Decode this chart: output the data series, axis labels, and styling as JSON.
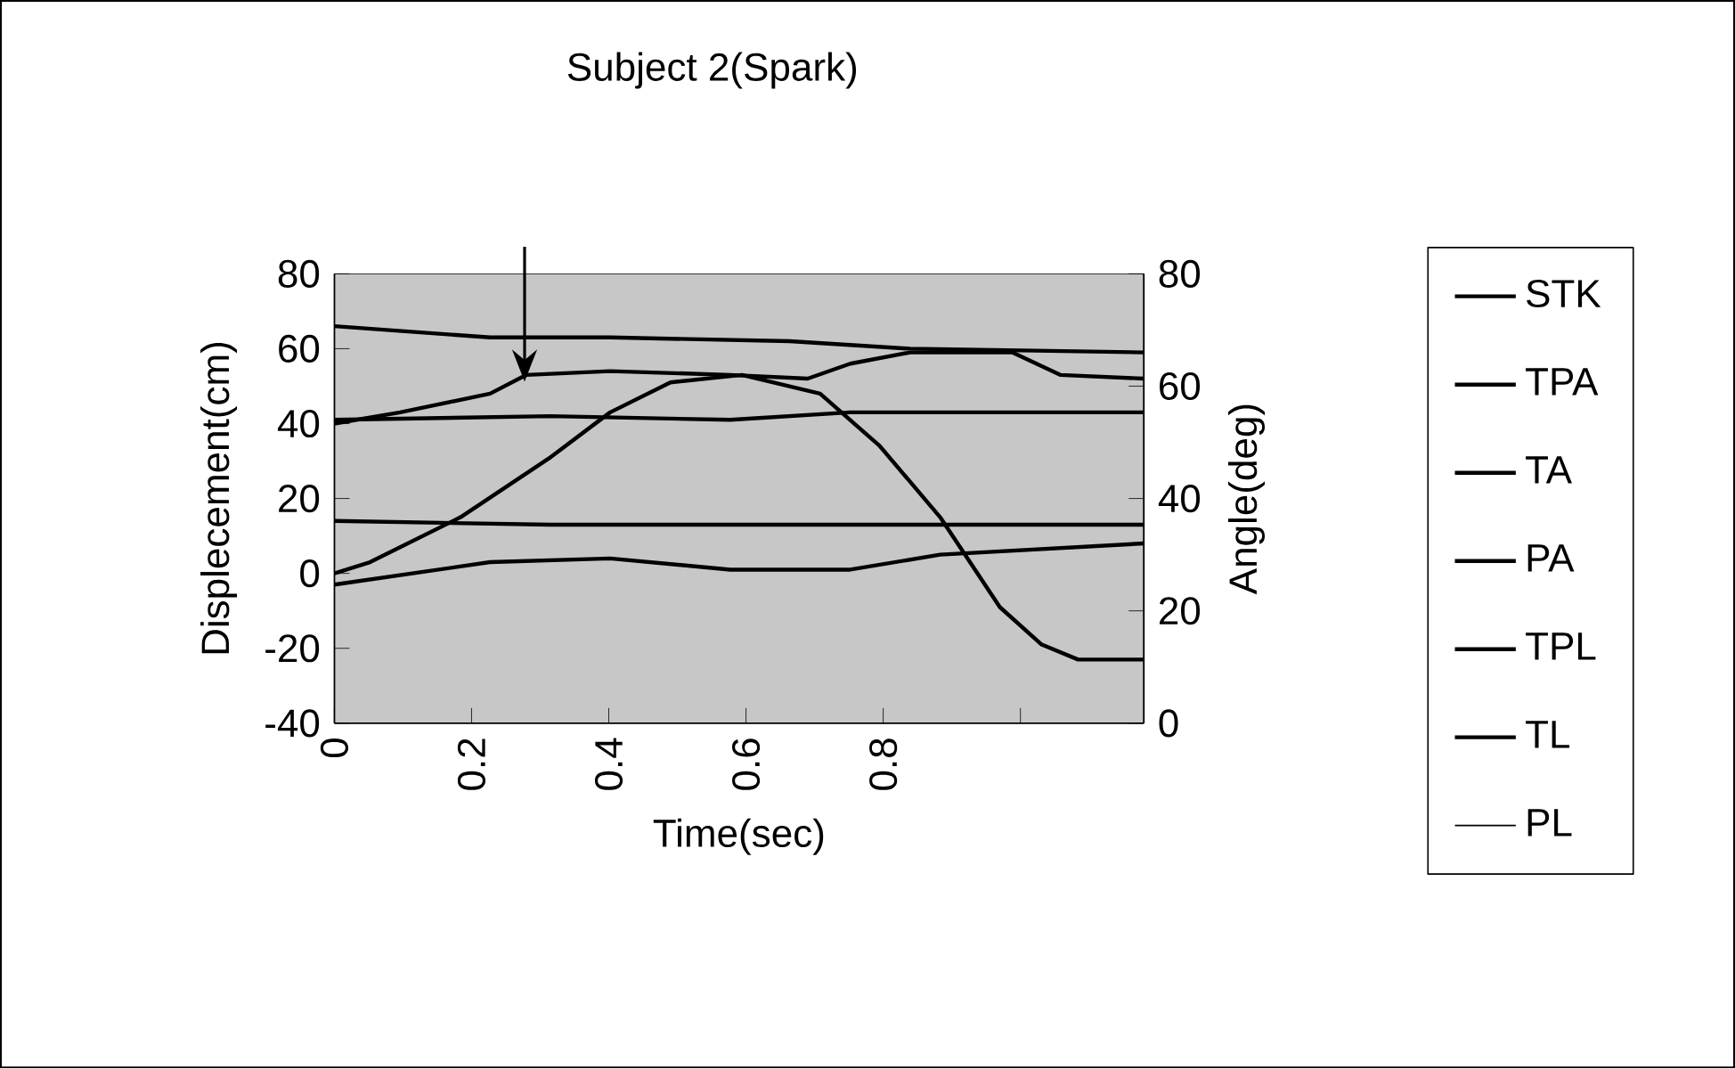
{
  "chart_data": {
    "type": "line",
    "title": "Subject 2(Spark)",
    "xlabel": "Time(sec)",
    "ylabel": "Displecement(cm)",
    "y2label": "Angle(deg)",
    "xlim": [
      0,
      1.18
    ],
    "xticks": [
      0,
      0.2,
      0.4,
      0.6,
      0.8,
      {
        "value": 1.0,
        "label": null
      }
    ],
    "ylim": [
      -40,
      80
    ],
    "yticks": [
      -40,
      -20,
      0,
      20,
      40,
      60,
      80
    ],
    "y2lim": [
      0,
      80
    ],
    "y2ticks": [
      0,
      20,
      40,
      60,
      80
    ],
    "legend": "right",
    "grid": false,
    "marker": "none",
    "line_style": "solid",
    "series": [
      {
        "name": "STK",
        "color": "#000000",
        "x": [
          0,
          0.227,
          0.402,
          0.664,
          0.839,
          1.18
        ],
        "values": [
          66,
          63,
          63,
          62,
          60,
          59
        ]
      },
      {
        "name": "TPA",
        "color": "#000000",
        "x": [
          0,
          0.096,
          0.227,
          0.28,
          0.402,
          0.577,
          0.69,
          0.752,
          0.839,
          0.988,
          1.058,
          1.18
        ],
        "values": [
          40,
          43,
          48,
          53,
          54,
          53,
          52,
          56,
          59,
          59,
          53,
          52
        ]
      },
      {
        "name": "TA",
        "color": "#000000",
        "x": [
          0,
          0.315,
          0.577,
          0.752,
          1.18
        ],
        "values": [
          41,
          42,
          41,
          43,
          43
        ]
      },
      {
        "name": "PA",
        "color": "#000000",
        "x": [
          0,
          0.315,
          0.577,
          0.839,
          1.18
        ],
        "values": [
          14,
          13,
          13,
          13,
          13
        ]
      },
      {
        "name": "TPL",
        "color": "#000000",
        "x": [
          0,
          0.227,
          0.402,
          0.577,
          0.752,
          0.883,
          1.18
        ],
        "values": [
          -3,
          3,
          4,
          1,
          1,
          5,
          8
        ]
      },
      {
        "name": "TL",
        "color": "#000000",
        "x": [
          0,
          0.052,
          0.184,
          0.315,
          0.402,
          0.49,
          0.594,
          0.708,
          0.795,
          0.883,
          0.97,
          1.031,
          1.084,
          1.18
        ],
        "values": [
          0,
          3,
          15,
          31,
          43,
          51,
          53,
          48,
          34,
          15,
          -9,
          -19,
          -23,
          -23
        ]
      },
      {
        "name": "PL"
      }
    ]
  }
}
